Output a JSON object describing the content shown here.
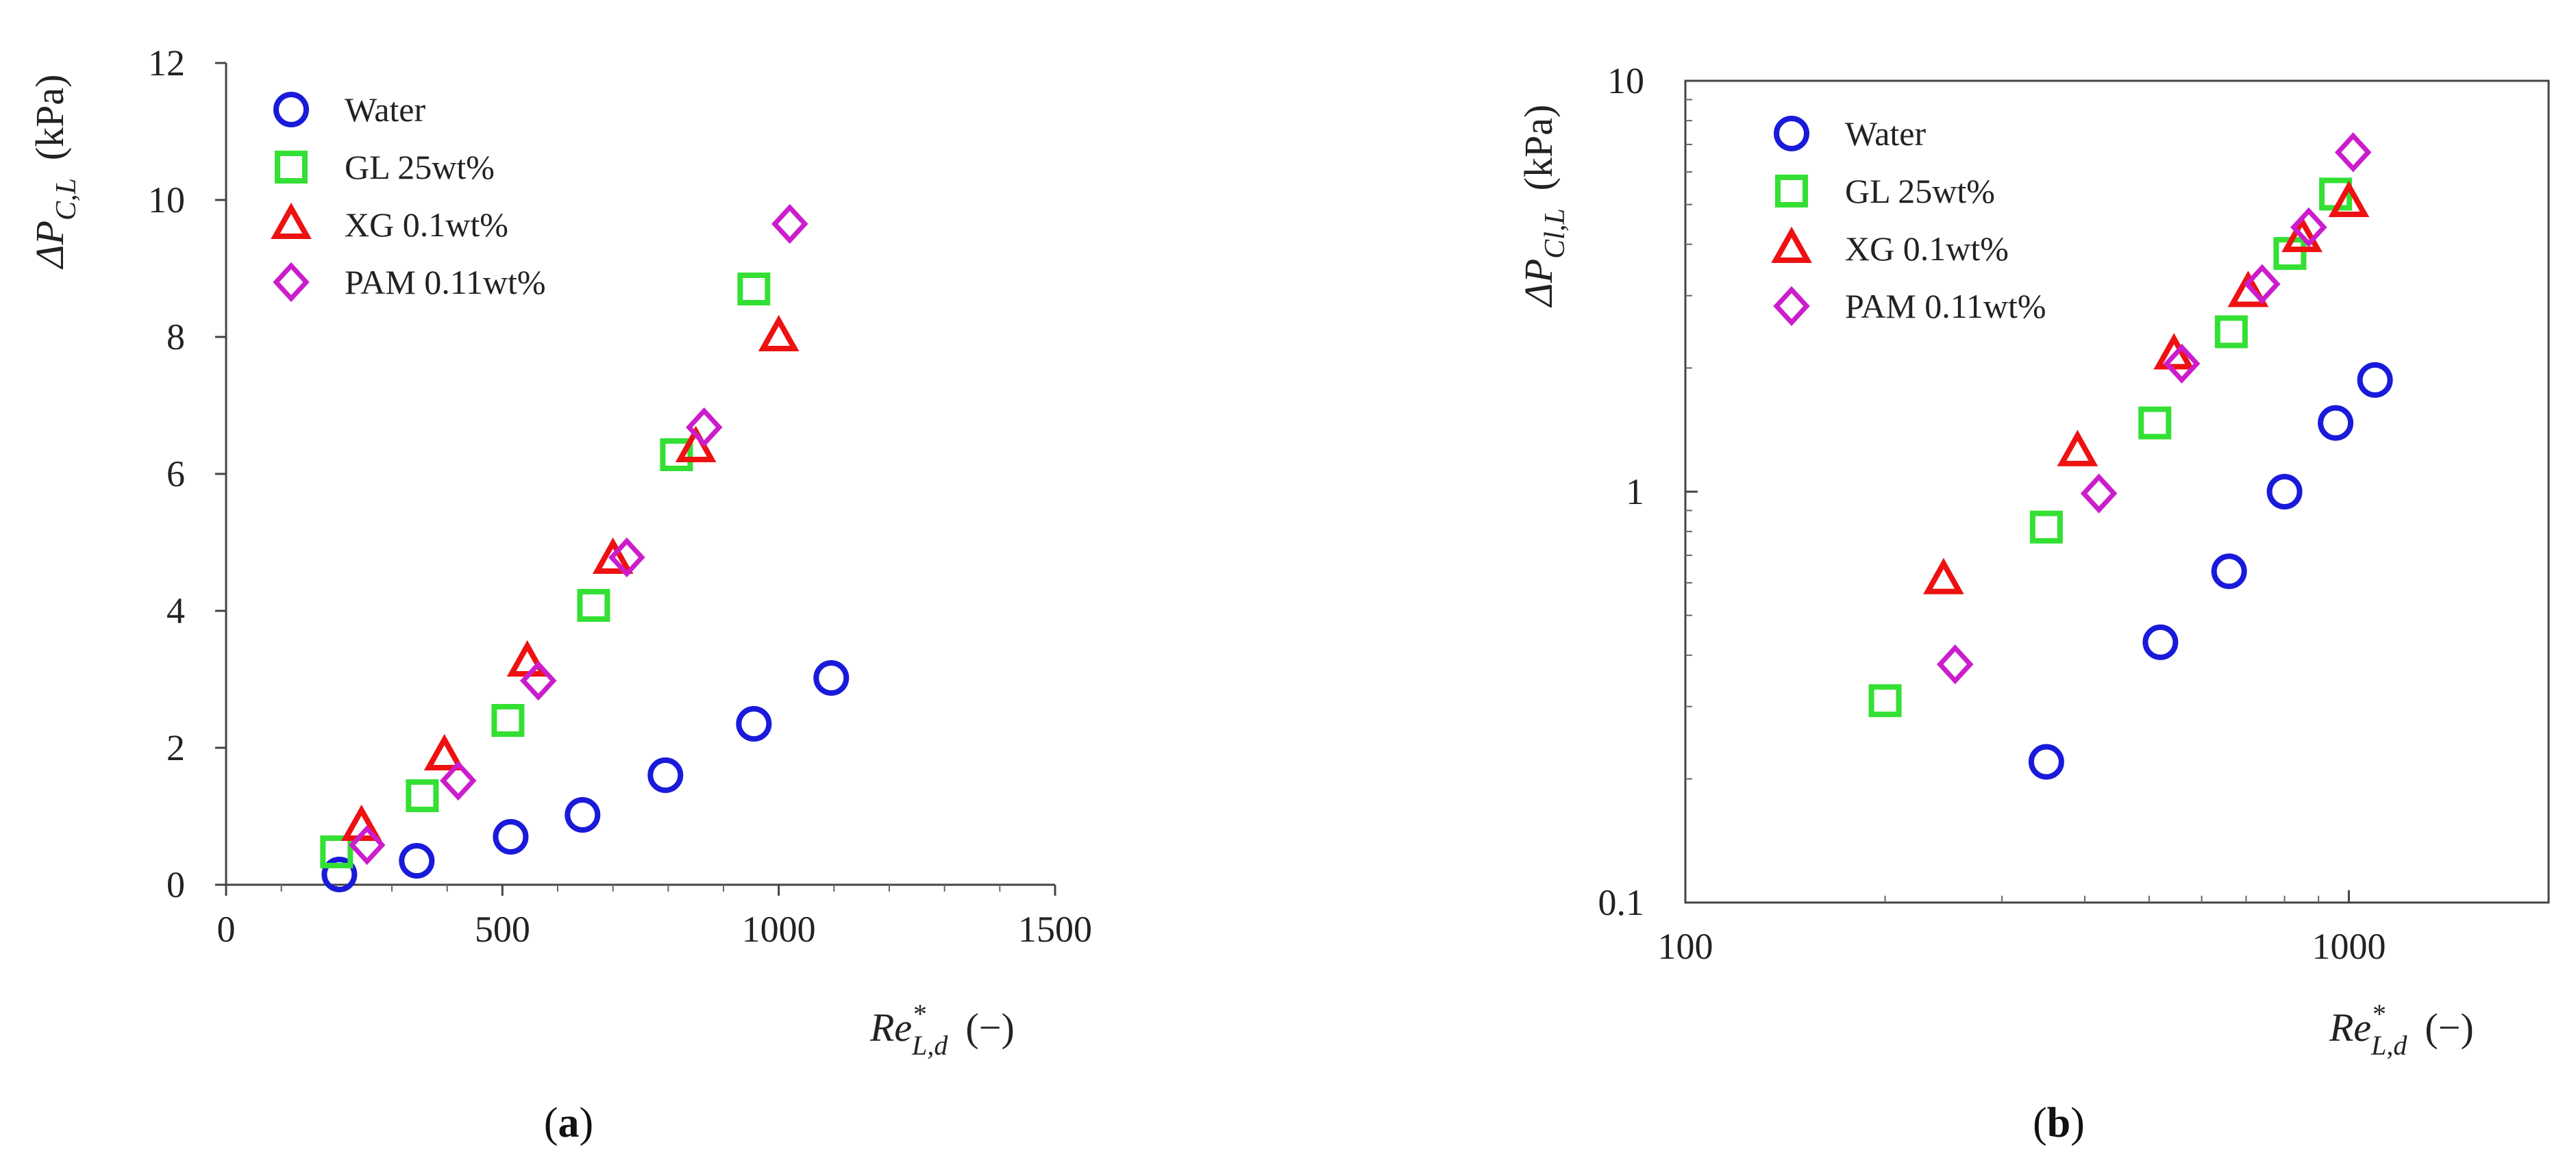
{
  "chart_data": [
    {
      "panel": "a",
      "panel_label": {
        "open": "(",
        "letter": "a",
        "close": ")"
      },
      "type": "scatter",
      "x_scale": "linear",
      "y_scale": "linear",
      "xlim": [
        0,
        1500
      ],
      "ylim": [
        0,
        12
      ],
      "x_ticks": [
        "0",
        "500",
        "1000",
        "1500"
      ],
      "y_ticks": [
        "0",
        "2",
        "4",
        "6",
        "8",
        "10",
        "12"
      ],
      "xlabel": {
        "main": "Re",
        "sup": "*",
        "sub": "L,d",
        "unit": "(−)"
      },
      "ylabel": {
        "main": "ΔP",
        "sub": "C,L",
        "unit": "(kPa)"
      },
      "legend_position": "top-left",
      "series": [
        {
          "name": "Water",
          "marker": "circle",
          "color": "#1a1adb",
          "x": [
            205,
            345,
            515,
            645,
            795,
            955,
            1095
          ],
          "y": [
            0.15,
            0.35,
            0.7,
            1.02,
            1.6,
            2.35,
            3.02
          ]
        },
        {
          "name": "GL 25wt%",
          "marker": "square",
          "color": "#33e033",
          "x": [
            200,
            355,
            510,
            665,
            815,
            955
          ],
          "y": [
            0.48,
            1.3,
            2.4,
            4.08,
            6.28,
            8.7
          ]
        },
        {
          "name": "XG 0.1wt%",
          "marker": "triangle",
          "color": "#ee1111",
          "x": [
            245,
            395,
            545,
            700,
            850,
            1000
          ],
          "y": [
            0.85,
            1.88,
            3.25,
            4.75,
            6.38,
            8.0
          ]
        },
        {
          "name": "PAM 0.11wt%",
          "marker": "diamond",
          "color": "#cc1ccc",
          "x": [
            255,
            420,
            565,
            725,
            865,
            1020
          ],
          "y": [
            0.58,
            1.52,
            2.98,
            4.78,
            6.68,
            9.65
          ]
        }
      ]
    },
    {
      "panel": "b",
      "panel_label": {
        "open": "(",
        "letter": "b",
        "close": ")"
      },
      "type": "scatter",
      "x_scale": "log",
      "y_scale": "log",
      "xlim": [
        100,
        2000
      ],
      "ylim": [
        0.1,
        10
      ],
      "x_ticks": [
        "100",
        "1000"
      ],
      "x_tick_values": [
        100,
        1000
      ],
      "y_ticks": [
        "0.1",
        "1",
        "10"
      ],
      "y_tick_values": [
        0.1,
        1,
        10
      ],
      "xlabel": {
        "main": "Re",
        "sup": "*",
        "sub": "L,d",
        "unit": "(−)"
      },
      "ylabel": {
        "main": "ΔP",
        "sub": "Cl,L",
        "unit": "(kPa)"
      },
      "legend_position": "top-left",
      "series": [
        {
          "name": "Water",
          "marker": "circle",
          "color": "#1a1adb",
          "x": [
            350,
            520,
            660,
            800,
            955,
            1095
          ],
          "y": [
            0.22,
            0.43,
            0.64,
            1.0,
            1.47,
            1.87
          ]
        },
        {
          "name": "GL 25wt%",
          "marker": "square",
          "color": "#33e033",
          "x": [
            200,
            350,
            510,
            665,
            815,
            955
          ],
          "y": [
            0.31,
            0.82,
            1.47,
            2.45,
            3.8,
            5.3
          ]
        },
        {
          "name": "XG 0.1wt%",
          "marker": "triangle",
          "color": "#ee1111",
          "x": [
            245,
            390,
            545,
            705,
            850,
            1000
          ],
          "y": [
            0.61,
            1.25,
            2.15,
            3.05,
            4.15,
            5.05
          ]
        },
        {
          "name": "PAM 0.11wt%",
          "marker": "diamond",
          "color": "#cc1ccc",
          "x": [
            255,
            420,
            560,
            740,
            870,
            1015
          ],
          "y": [
            0.38,
            0.99,
            2.05,
            3.2,
            4.4,
            6.7
          ]
        }
      ]
    }
  ]
}
